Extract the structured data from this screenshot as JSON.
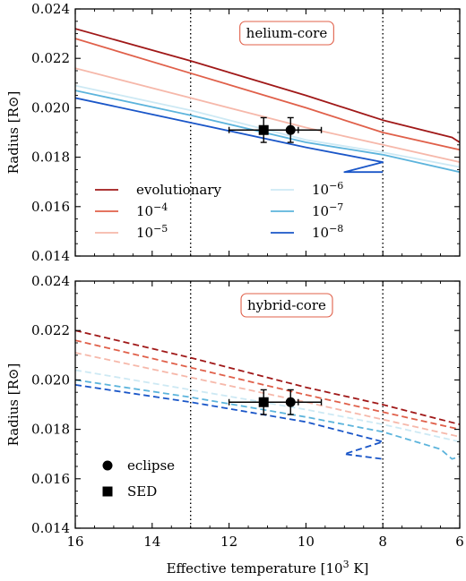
{
  "chart_data": {
    "type": "line",
    "xlabel": "Effective temperature [10³ K]",
    "xlim": [
      16,
      6
    ],
    "xticks": [
      16,
      14,
      12,
      10,
      8,
      6
    ],
    "vlines": [
      13,
      8
    ],
    "panels": [
      {
        "label": "helium-core",
        "ylabel": "Radius [R⊙]",
        "ylim": [
          0.014,
          0.024
        ],
        "yticks": [
          "0.014",
          "0.016",
          "0.018",
          "0.020",
          "0.022",
          "0.024"
        ],
        "line_style": "solid",
        "series": [
          {
            "name": "evolutionary",
            "color": "#a01818",
            "points": [
              [
                16,
                0.0232
              ],
              [
                13,
                0.0219
              ],
              [
                10,
                0.0205
              ],
              [
                8,
                0.0195
              ],
              [
                6.2,
                0.0188
              ],
              [
                6,
                0.0186
              ]
            ]
          },
          {
            "name": "10⁻⁴",
            "color": "#e0604a",
            "points": [
              [
                16,
                0.0228
              ],
              [
                13,
                0.0214
              ],
              [
                10,
                0.02
              ],
              [
                8,
                0.019
              ],
              [
                6,
                0.0183
              ]
            ]
          },
          {
            "name": "10⁻⁵",
            "color": "#f6b8aa",
            "points": [
              [
                16,
                0.0216
              ],
              [
                13,
                0.0204
              ],
              [
                10,
                0.0192
              ],
              [
                8,
                0.0185
              ],
              [
                6,
                0.0178
              ]
            ]
          },
          {
            "name": "10⁻⁶",
            "color": "#cde9f4",
            "points": [
              [
                16,
                0.0209
              ],
              [
                13,
                0.0199
              ],
              [
                10,
                0.0187
              ],
              [
                8,
                0.0182
              ],
              [
                6,
                0.0176
              ]
            ]
          },
          {
            "name": "10⁻⁷",
            "color": "#5cb4dc",
            "points": [
              [
                16,
                0.0207
              ],
              [
                13,
                0.0197
              ],
              [
                10,
                0.0186
              ],
              [
                8,
                0.0181
              ],
              [
                6,
                0.0174
              ]
            ]
          },
          {
            "name": "10⁻⁸",
            "color": "#1a56c8",
            "points": [
              [
                16,
                0.0204
              ],
              [
                13,
                0.0194
              ],
              [
                10,
                0.0184
              ],
              [
                8,
                0.0178
              ],
              [
                9,
                0.0174
              ],
              [
                8,
                0.0174
              ]
            ]
          }
        ],
        "points": [
          {
            "name": "eclipse",
            "marker": "circle",
            "x": 10.4,
            "y": 0.0191,
            "xerr": 0.8,
            "yerr": 0.0005
          },
          {
            "name": "SED",
            "marker": "square",
            "x": 11.1,
            "y": 0.0191,
            "xerr": 0.9,
            "yerr": 0.0005
          }
        ],
        "legend": {
          "position": "lower-left",
          "columns": 2,
          "entries": [
            "evolutionary",
            "10⁻⁴",
            "10⁻⁵",
            "10⁻⁶",
            "10⁻⁷",
            "10⁻⁸"
          ]
        }
      },
      {
        "label": "hybrid-core",
        "ylabel": "Radius [R⊙]",
        "ylim": [
          0.014,
          0.024
        ],
        "yticks": [
          "0.014",
          "0.016",
          "0.018",
          "0.020",
          "0.022",
          "0.024"
        ],
        "line_style": "dashed",
        "series": [
          {
            "name": "evolutionary",
            "color": "#a01818",
            "points": [
              [
                16,
                0.022
              ],
              [
                13,
                0.0209
              ],
              [
                10,
                0.0197
              ],
              [
                8,
                0.019
              ],
              [
                6,
                0.0182
              ]
            ]
          },
          {
            "name": "10⁻⁴",
            "color": "#e0604a",
            "points": [
              [
                16,
                0.0216
              ],
              [
                13,
                0.0205
              ],
              [
                10,
                0.0194
              ],
              [
                8,
                0.0187
              ],
              [
                6,
                0.018
              ]
            ]
          },
          {
            "name": "10⁻⁵",
            "color": "#f6b8aa",
            "points": [
              [
                16,
                0.0211
              ],
              [
                13,
                0.0201
              ],
              [
                10,
                0.0191
              ],
              [
                8,
                0.0184
              ],
              [
                6,
                0.0177
              ]
            ]
          },
          {
            "name": "10⁻⁶",
            "color": "#cde9f4",
            "points": [
              [
                16,
                0.0204
              ],
              [
                13,
                0.0196
              ],
              [
                10,
                0.0188
              ],
              [
                8,
                0.0182
              ],
              [
                6,
                0.0175
              ]
            ]
          },
          {
            "name": "10⁻⁷",
            "color": "#5cb4dc",
            "points": [
              [
                16,
                0.02
              ],
              [
                13,
                0.0193
              ],
              [
                10,
                0.0185
              ],
              [
                8,
                0.0179
              ],
              [
                6.5,
                0.0172
              ],
              [
                6.2,
                0.0168
              ],
              [
                6,
                0.0169
              ]
            ]
          },
          {
            "name": "10⁻⁸",
            "color": "#1a56c8",
            "points": [
              [
                16,
                0.0198
              ],
              [
                13,
                0.0191
              ],
              [
                10,
                0.0183
              ],
              [
                8,
                0.0175
              ],
              [
                9,
                0.017
              ],
              [
                8,
                0.0168
              ]
            ]
          }
        ],
        "points": [
          {
            "name": "eclipse",
            "marker": "circle",
            "x": 10.4,
            "y": 0.0191,
            "xerr": 0.8,
            "yerr": 0.0005
          },
          {
            "name": "SED",
            "marker": "square",
            "x": 11.1,
            "y": 0.0191,
            "xerr": 0.9,
            "yerr": 0.0005
          }
        ],
        "legend": {
          "position": "lower-left",
          "columns": 1,
          "entries": [
            "eclipse",
            "SED"
          ]
        }
      }
    ]
  }
}
